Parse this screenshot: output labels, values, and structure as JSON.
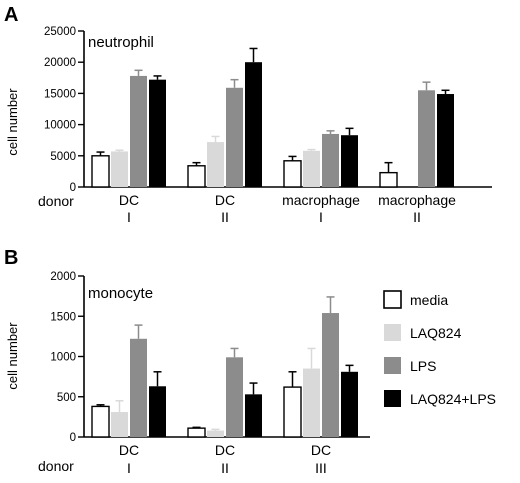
{
  "colors": {
    "media": "#ffffff",
    "LAQ824": "#d9d9d9",
    "LPS": "#8c8c8c",
    "LAQ824+LPS": "#000000",
    "axis": "#000000"
  },
  "legend": [
    {
      "label": "media",
      "color": "#ffffff"
    },
    {
      "label": "LAQ824",
      "color": "#d9d9d9"
    },
    {
      "label": "LPS",
      "color": "#8c8c8c"
    },
    {
      "label": "LAQ824+LPS",
      "color": "#000000"
    }
  ],
  "chart_data": [
    {
      "panel": "A",
      "type": "bar",
      "title": "neutrophil",
      "ylabel": "cell number",
      "ylim": [
        0,
        25000
      ],
      "yticks": [
        0,
        5000,
        10000,
        15000,
        20000,
        25000
      ],
      "ytick_labels": [
        "0",
        "5000",
        "10000",
        "15000",
        "20000",
        "25000"
      ],
      "row_label": "donor",
      "groups": [
        {
          "cell": "DC",
          "donor": "I"
        },
        {
          "cell": "DC",
          "donor": "II"
        },
        {
          "cell": "macrophage",
          "donor": "I"
        },
        {
          "cell": "macrophage",
          "donor": "II"
        }
      ],
      "series": [
        {
          "name": "media",
          "values": [
            5000,
            3400,
            4200,
            2300
          ],
          "errors": [
            600,
            500,
            700,
            1600
          ]
        },
        {
          "name": "LAQ824",
          "values": [
            5700,
            7200,
            5800,
            null
          ],
          "errors": [
            200,
            900,
            200,
            null
          ]
        },
        {
          "name": "LPS",
          "values": [
            17800,
            15900,
            8500,
            15500
          ],
          "errors": [
            900,
            1300,
            500,
            1300
          ]
        },
        {
          "name": "LAQ824+LPS",
          "values": [
            17200,
            20000,
            8300,
            14900
          ],
          "errors": [
            600,
            2200,
            1100,
            600
          ]
        }
      ]
    },
    {
      "panel": "B",
      "type": "bar",
      "title": "monocyte",
      "ylabel": "cell number",
      "ylim": [
        0,
        2000
      ],
      "yticks": [
        0,
        500,
        1000,
        1500,
        2000
      ],
      "ytick_labels": [
        "0",
        "500",
        "1000",
        "1500",
        "2000"
      ],
      "row_label": "donor",
      "groups": [
        {
          "cell": "DC",
          "donor": "I"
        },
        {
          "cell": "DC",
          "donor": "II"
        },
        {
          "cell": "DC",
          "donor": "III"
        }
      ],
      "series": [
        {
          "name": "media",
          "values": [
            380,
            110,
            620
          ],
          "errors": [
            20,
            10,
            190
          ]
        },
        {
          "name": "LAQ824",
          "values": [
            310,
            80,
            850
          ],
          "errors": [
            140,
            15,
            250
          ]
        },
        {
          "name": "LPS",
          "values": [
            1220,
            990,
            1540
          ],
          "errors": [
            170,
            110,
            200
          ]
        },
        {
          "name": "LAQ824+LPS",
          "values": [
            630,
            530,
            810
          ],
          "errors": [
            180,
            140,
            80
          ]
        }
      ]
    }
  ]
}
